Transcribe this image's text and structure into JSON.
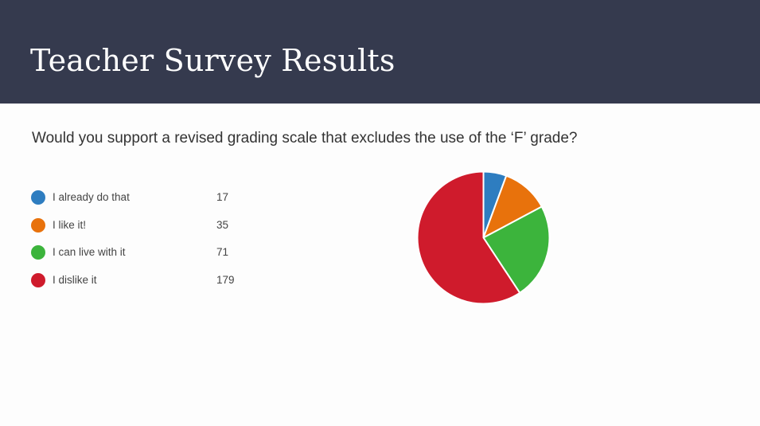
{
  "header": {
    "title": "Teacher Survey Results"
  },
  "question": "Would you support a revised grading scale that excludes the use of the ‘F’ grade?",
  "chart_data": {
    "type": "pie",
    "categories": [
      "I already do that",
      "I like it!",
      "I can live with it",
      "I dislike it"
    ],
    "values": [
      17,
      35,
      71,
      179
    ],
    "colors": [
      "#2e7dc0",
      "#e8720c",
      "#3cb43c",
      "#cf1b2c"
    ],
    "start_angle_deg": 0,
    "direction": "clockwise",
    "legend_position": "left"
  }
}
